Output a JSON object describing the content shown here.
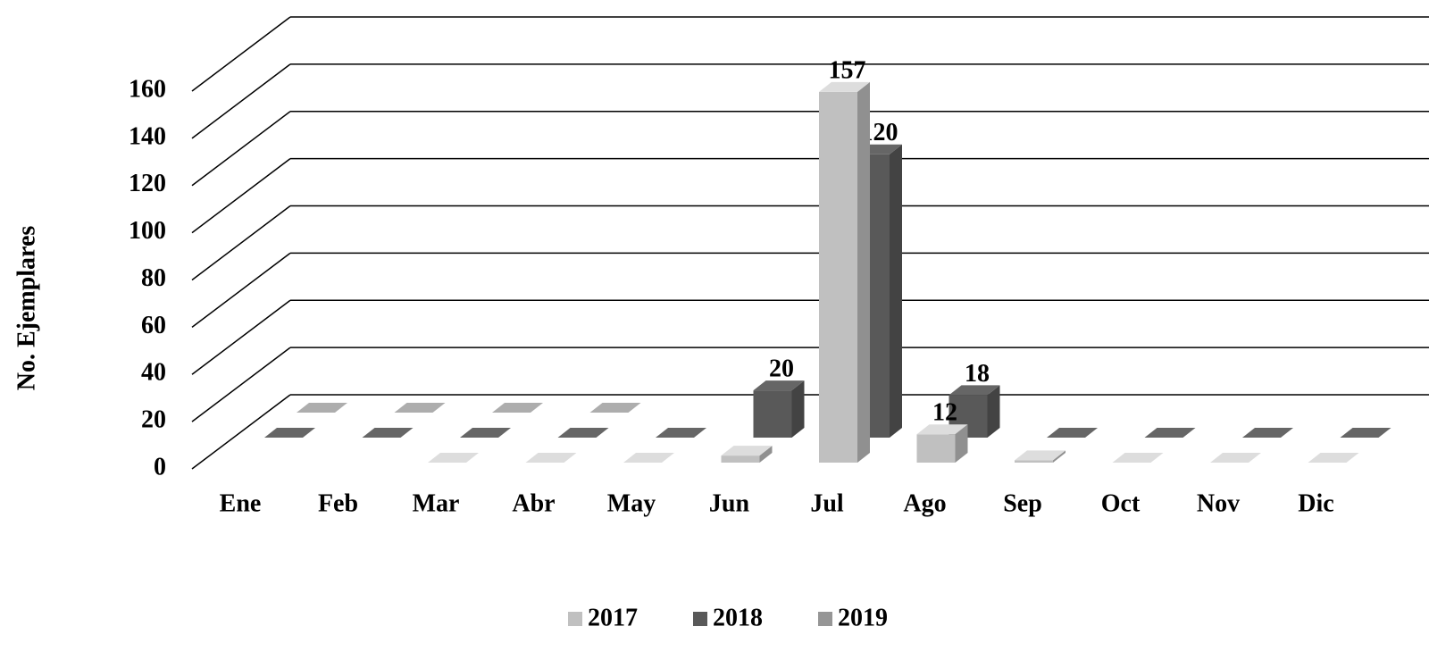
{
  "chart_data": {
    "type": "bar3d",
    "y_label": "No. Ejemplares",
    "categories": [
      "Ene",
      "Feb",
      "Mar",
      "Abr",
      "May",
      "Jun",
      "Jul",
      "Ago",
      "Sep",
      "Oct",
      "Nov",
      "Dic"
    ],
    "series": [
      {
        "name": "2017",
        "color": "#c0c0c0",
        "values": [
          null,
          null,
          0,
          0,
          0,
          3,
          157,
          12,
          1,
          0,
          0,
          0
        ]
      },
      {
        "name": "2018",
        "color": "#595959",
        "values": [
          0,
          0,
          0,
          0,
          0,
          20,
          120,
          18,
          0,
          0,
          0,
          0
        ]
      },
      {
        "name": "2019",
        "color": "#969696",
        "values": [
          0,
          0,
          0,
          0,
          null,
          null,
          null,
          null,
          null,
          null,
          null,
          null
        ]
      }
    ],
    "ylim": [
      0,
      160
    ],
    "yticks": [
      0,
      20,
      40,
      60,
      80,
      100,
      120,
      140,
      160
    ],
    "grid": true,
    "legend": "bottom"
  }
}
